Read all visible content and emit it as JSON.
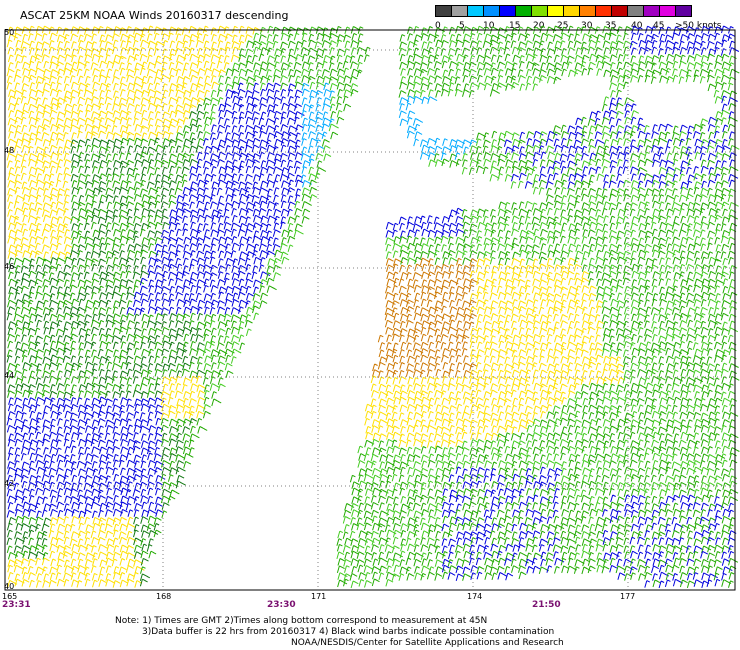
{
  "title": "ASCAT 25KM NOAA Winds 20160317 descending",
  "colorbar": {
    "labels": [
      "0",
      "5",
      "10",
      "15",
      "20",
      "25",
      "30",
      "35",
      "40",
      "45",
      ">50 knots"
    ],
    "colors": [
      "#404040",
      "#a0a0a0",
      "#00c8ff",
      "#0090ff",
      "#0000ff",
      "#00b000",
      "#80e000",
      "#ffff00",
      "#ffd700",
      "#ff8000",
      "#ff3000",
      "#c00000",
      "#808080",
      "#a000c0",
      "#e000e0",
      "#6000a0"
    ]
  },
  "map": {
    "lat_labels": [
      "50",
      "48",
      "46",
      "44",
      "42",
      "40"
    ],
    "lon_labels": [
      "165",
      "168",
      "171",
      "174",
      "177"
    ],
    "time_labels": [
      "23:31",
      "23:30",
      "21:50"
    ],
    "grid_color": "#808080",
    "barb_colors": {
      "blue": "#0000dd",
      "green": "#22aa00",
      "lightgreen": "#44cc22",
      "darkgreen": "#117711",
      "yellow": "#ffe000",
      "orange": "#cc7700",
      "cyan": "#00aaff"
    }
  },
  "notes": [
    "Note: 1) Times are GMT 2)Times along bottom correspond to measurement at 45N",
    "3)Data buffer is 22 hrs from 20160317 4) Black wind barbs indicate possible contamination",
    "NOAA/NESDIS/Center for Satellite Applications and Research"
  ]
}
